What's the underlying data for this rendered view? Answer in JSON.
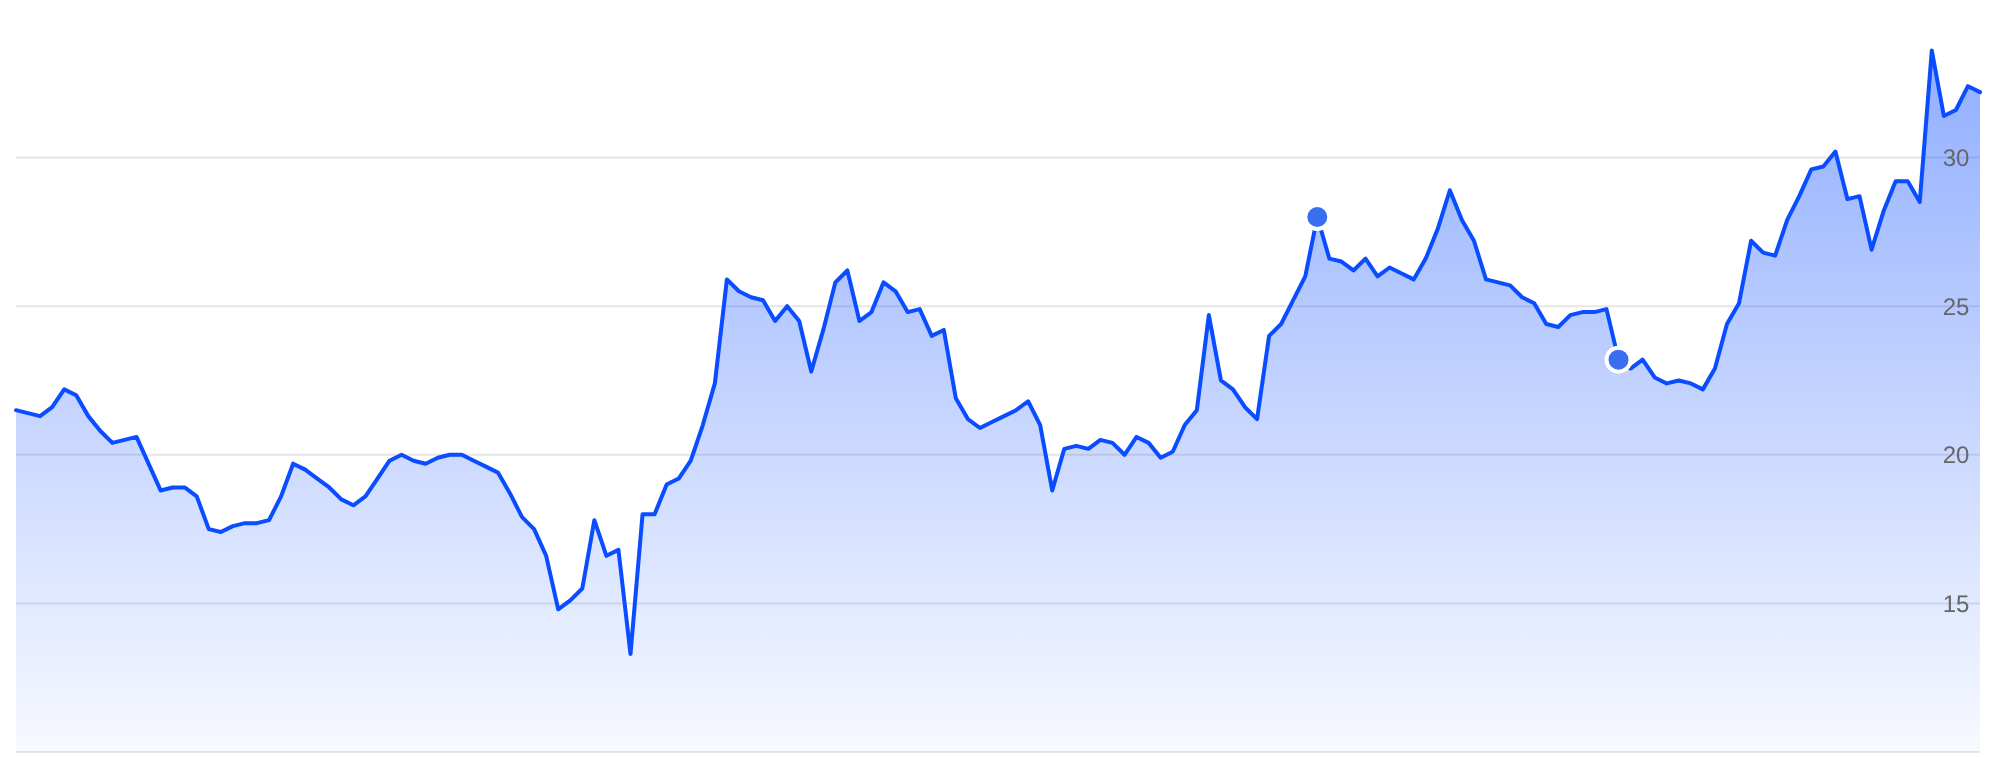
{
  "chart_data": {
    "type": "area",
    "categories": [
      null,
      null,
      null,
      null,
      null,
      null,
      null,
      null,
      null,
      null,
      null,
      null,
      null,
      null,
      null,
      null,
      null,
      null,
      null,
      null,
      null,
      null,
      null,
      null,
      null,
      null,
      null,
      null,
      null,
      null,
      null,
      null,
      null,
      null,
      null,
      null,
      null,
      null,
      null,
      null,
      null,
      null,
      null,
      null,
      null,
      null,
      null,
      null,
      null,
      null,
      null,
      null,
      null,
      null,
      null,
      null,
      null,
      null,
      null,
      null,
      null,
      null,
      null,
      null,
      null,
      null,
      null,
      null,
      null,
      null,
      null,
      null,
      null,
      null,
      null,
      null,
      null,
      null,
      null,
      null,
      null,
      null,
      null,
      null,
      null,
      null,
      null,
      null,
      null,
      null,
      null,
      null,
      null,
      null,
      null,
      null,
      null,
      null,
      null,
      null,
      null,
      null,
      null,
      null,
      null,
      null,
      null,
      null,
      null,
      null,
      null,
      null,
      null,
      null,
      null,
      null,
      null,
      null,
      null,
      null,
      null,
      null,
      null,
      null,
      null,
      null,
      null,
      null,
      null,
      null,
      null,
      null,
      null,
      null,
      null,
      null,
      null,
      null,
      null,
      null,
      null,
      null,
      null,
      null,
      null,
      null,
      null,
      null,
      null,
      null,
      null,
      null,
      null,
      null,
      null,
      null,
      null,
      null,
      null,
      null,
      null,
      null,
      null,
      null
    ],
    "ylim": [
      10,
      35.3
    ],
    "yticks": [
      {
        "value": 10,
        "label": null
      },
      15,
      20,
      25,
      30
    ],
    "grid": "y",
    "tick_labels": "y",
    "series": [
      {
        "color": "#0a4cff",
        "values": [
          21.5,
          21.4,
          21.3,
          21.6,
          22.2,
          22.0,
          21.3,
          20.8,
          20.4,
          20.5,
          20.6,
          19.7,
          18.8,
          18.9,
          18.9,
          18.6,
          17.5,
          17.4,
          17.6,
          17.7,
          17.7,
          17.8,
          18.6,
          19.7,
          19.5,
          19.2,
          18.9,
          18.5,
          18.3,
          18.6,
          19.2,
          19.8,
          20.0,
          19.8,
          19.7,
          19.9,
          20.0,
          20.0,
          19.8,
          19.6,
          19.4,
          18.7,
          17.9,
          17.5,
          16.6,
          14.8,
          15.1,
          15.5,
          17.8,
          16.6,
          16.8,
          13.3,
          18.0,
          18.0,
          19.0,
          19.2,
          19.8,
          21.0,
          22.4,
          25.9,
          25.5,
          25.3,
          25.2,
          24.5,
          25.0,
          24.5,
          22.8,
          24.2,
          25.8,
          26.2,
          24.5,
          24.8,
          25.8,
          25.5,
          24.8,
          24.9,
          24.0,
          24.2,
          21.9,
          21.2,
          20.9,
          21.1,
          21.3,
          21.5,
          21.8,
          21.0,
          18.8,
          20.2,
          20.3,
          20.2,
          20.5,
          20.4,
          20.0,
          20.6,
          20.4,
          19.9,
          20.1,
          21.0,
          21.5,
          24.7,
          22.5,
          22.2,
          21.6,
          21.2,
          24.0,
          24.4,
          25.2,
          26.0,
          28.0,
          26.6,
          26.5,
          26.2,
          26.6,
          26.0,
          26.3,
          26.1,
          25.9,
          26.6,
          27.6,
          28.9,
          27.9,
          27.2,
          25.9,
          25.8,
          25.7,
          25.3,
          25.1,
          24.4,
          24.3,
          24.7,
          24.8,
          24.8,
          24.9,
          23.2,
          22.9,
          23.2,
          22.6,
          22.4,
          22.5,
          22.4,
          22.2,
          22.9,
          24.4,
          25.1,
          27.2,
          26.8,
          26.7,
          27.9,
          28.7,
          29.6,
          29.7,
          30.2,
          28.6,
          28.7,
          26.9,
          28.2,
          29.2,
          29.2,
          28.5,
          33.6,
          31.4,
          31.6,
          32.4,
          32.2
        ]
      },
      {
        "type": "scatter",
        "color": "#3a6ef0",
        "marker": "circle",
        "values": [
          null,
          null,
          null,
          null,
          null,
          null,
          null,
          null,
          null,
          null,
          null,
          null,
          null,
          null,
          null,
          null,
          null,
          null,
          null,
          null,
          null,
          null,
          null,
          null,
          null,
          null,
          null,
          null,
          null,
          null,
          null,
          null,
          null,
          null,
          null,
          null,
          null,
          null,
          null,
          null,
          null,
          null,
          null,
          null,
          null,
          null,
          null,
          null,
          null,
          null,
          null,
          null,
          null,
          null,
          null,
          null,
          null,
          null,
          null,
          null,
          null,
          null,
          null,
          null,
          null,
          null,
          null,
          null,
          null,
          null,
          null,
          null,
          null,
          null,
          null,
          null,
          null,
          null,
          null,
          null,
          null,
          null,
          null,
          null,
          null,
          null,
          null,
          null,
          null,
          null,
          null,
          null,
          null,
          null,
          null,
          null,
          null,
          null,
          null,
          null,
          null,
          null,
          null,
          null,
          null,
          null,
          null,
          null,
          28.0,
          null,
          null,
          null,
          null,
          null,
          null,
          null,
          null,
          null,
          null,
          null,
          null,
          null,
          null,
          null,
          null,
          null,
          null,
          null,
          null,
          null,
          null,
          null,
          null,
          23.2,
          null,
          null,
          null,
          null,
          null,
          null,
          null,
          null,
          null,
          null,
          null,
          null,
          null,
          null,
          null,
          null,
          null,
          null,
          null,
          null,
          null,
          null,
          null,
          null,
          null,
          null,
          null,
          null,
          null,
          null
        ]
      }
    ]
  }
}
